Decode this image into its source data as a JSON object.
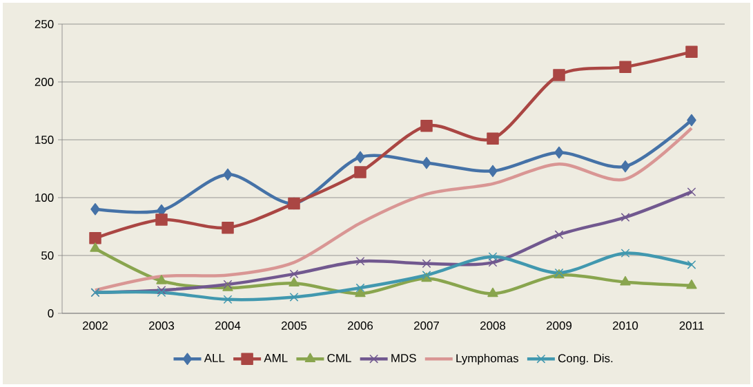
{
  "chart_data": {
    "type": "line",
    "categories": [
      "2002",
      "2003",
      "2004",
      "2005",
      "2006",
      "2007",
      "2008",
      "2009",
      "2010",
      "2011"
    ],
    "series": [
      {
        "name": "ALL",
        "color": "#4572a7",
        "marker": "diamond",
        "values": [
          90,
          89,
          120,
          95,
          135,
          130,
          123,
          139,
          127,
          167
        ]
      },
      {
        "name": "AML",
        "color": "#aa4643",
        "marker": "square",
        "values": [
          65,
          81,
          74,
          95,
          122,
          162,
          151,
          206,
          213,
          226
        ]
      },
      {
        "name": "CML",
        "color": "#89a54e",
        "marker": "triangle",
        "values": [
          56,
          28,
          22,
          26,
          17,
          30,
          17,
          33,
          27,
          24
        ]
      },
      {
        "name": "MDS",
        "color": "#71588f",
        "marker": "cross",
        "values": [
          18,
          20,
          25,
          34,
          45,
          43,
          44,
          68,
          83,
          105
        ]
      },
      {
        "name": "Lymphomas",
        "color": "#d99694",
        "marker": "none",
        "values": [
          20,
          32,
          33,
          44,
          78,
          103,
          112,
          129,
          116,
          160
        ]
      },
      {
        "name": "Cong. Dis.",
        "color": "#4198af",
        "marker": "cross",
        "values": [
          18,
          18,
          12,
          14,
          22,
          33,
          49,
          35,
          52,
          42
        ]
      }
    ],
    "ylim": [
      0,
      250
    ],
    "yticks": [
      0,
      50,
      100,
      150,
      200,
      250
    ],
    "grid": "y",
    "legend": "bottom",
    "line_style": "solid"
  }
}
